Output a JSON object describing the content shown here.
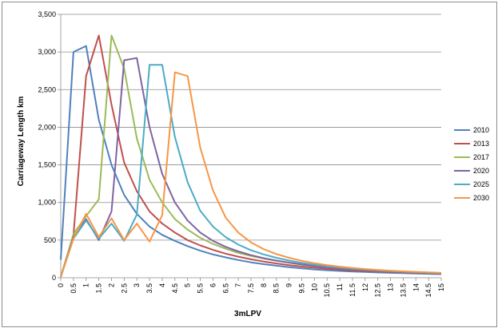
{
  "chart_data": {
    "type": "line",
    "title": "",
    "xlabel": "3mLPV",
    "ylabel": "Carriageway Length km",
    "ylim": [
      0,
      3500
    ],
    "yticks": [
      "0",
      "500",
      "1,000",
      "1,500",
      "2,000",
      "2,500",
      "3,000",
      "3,500"
    ],
    "ytick_values": [
      0,
      500,
      1000,
      1500,
      2000,
      2500,
      3000,
      3500
    ],
    "x": [
      0,
      0.5,
      1,
      1.5,
      2,
      2.5,
      3,
      3.5,
      4,
      4.5,
      5,
      5.5,
      6,
      6.5,
      7,
      7.5,
      8,
      8.5,
      9,
      9.5,
      10,
      10.5,
      11,
      11.5,
      12,
      12.5,
      13,
      13.5,
      14,
      14.5,
      15
    ],
    "xticks": [
      "0",
      "0.5",
      "1",
      "1.5",
      "2",
      "2.5",
      "3",
      "3.5",
      "4",
      "4.5",
      "5",
      "5.5",
      "6",
      "6.5",
      "7",
      "7.5",
      "8",
      "8.5",
      "9",
      "9.5",
      "10",
      "10.5",
      "11",
      "11.5",
      "12",
      "12.5",
      "13",
      "13.5",
      "14",
      "14.5",
      "15"
    ],
    "grid": "horizontal",
    "legend": "right",
    "series": [
      {
        "name": "2010",
        "color": "#4f81bd",
        "values": [
          240,
          3000,
          3080,
          2100,
          1500,
          1100,
          850,
          680,
          570,
          490,
          420,
          360,
          310,
          270,
          235,
          205,
          180,
          160,
          140,
          125,
          110,
          100,
          90,
          82,
          76,
          70,
          65,
          60,
          56,
          52,
          48
        ]
      },
      {
        "name": "2013",
        "color": "#c0504d",
        "values": [
          10,
          560,
          2680,
          3220,
          2300,
          1530,
          1150,
          880,
          720,
          600,
          500,
          430,
          370,
          320,
          280,
          245,
          215,
          190,
          168,
          150,
          134,
          120,
          108,
          98,
          90,
          82,
          76,
          70,
          65,
          60,
          56
        ]
      },
      {
        "name": "2017",
        "color": "#9bbb59",
        "values": [
          10,
          580,
          820,
          1040,
          3220,
          2780,
          1850,
          1300,
          1000,
          780,
          640,
          530,
          450,
          385,
          330,
          290,
          255,
          225,
          200,
          178,
          158,
          142,
          128,
          116,
          105,
          96,
          88,
          80,
          74,
          68,
          63
        ]
      },
      {
        "name": "2020",
        "color": "#8064a2",
        "values": [
          10,
          540,
          780,
          500,
          880,
          2890,
          2920,
          2000,
          1380,
          1000,
          760,
          600,
          490,
          410,
          350,
          300,
          260,
          228,
          200,
          176,
          156,
          140,
          125,
          113,
          102,
          93,
          85,
          78,
          72,
          66,
          61
        ]
      },
      {
        "name": "2025",
        "color": "#4bacc6",
        "values": [
          10,
          520,
          760,
          520,
          720,
          490,
          840,
          2830,
          2830,
          1870,
          1270,
          890,
          680,
          540,
          440,
          365,
          310,
          265,
          228,
          198,
          172,
          152,
          134,
          120,
          108,
          97,
          88,
          80,
          73,
          67,
          62
        ]
      },
      {
        "name": "2030",
        "color": "#f79646",
        "values": [
          10,
          520,
          850,
          540,
          790,
          500,
          720,
          480,
          830,
          2730,
          2680,
          1730,
          1160,
          800,
          600,
          470,
          380,
          315,
          265,
          225,
          193,
          168,
          147,
          130,
          116,
          104,
          94,
          85,
          78,
          71,
          65
        ]
      }
    ]
  }
}
